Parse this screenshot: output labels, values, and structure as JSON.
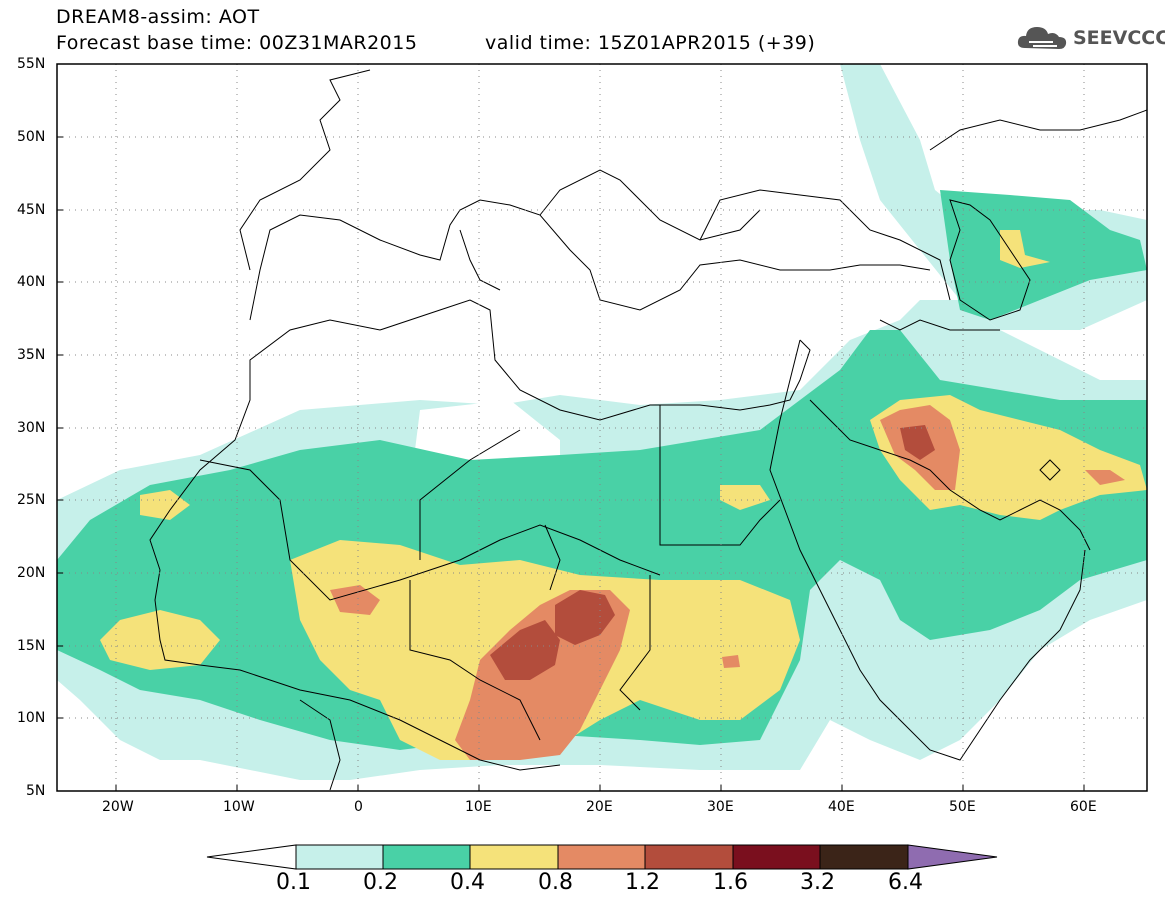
{
  "header": {
    "line1": "DREAM8-assim: AOT",
    "base_time": "Forecast base time: 00Z31MAR2015",
    "valid_time": "valid time: 15Z01APR2015 (+39)"
  },
  "logo": {
    "text": "SEEVCCC",
    "icon": "cloud-icon"
  },
  "map": {
    "lon_range": [
      -25,
      65
    ],
    "lat_range": [
      5,
      55
    ],
    "lat_ticks": [
      "55N",
      "50N",
      "45N",
      "40N",
      "35N",
      "30N",
      "25N",
      "20N",
      "15N",
      "10N",
      "5N"
    ],
    "lon_ticks": [
      "20W",
      "10W",
      "0",
      "10E",
      "20E",
      "30E",
      "40E",
      "50E",
      "60E"
    ],
    "grid": "dotted"
  },
  "colorbar": {
    "labels": [
      "0.1",
      "0.2",
      "0.4",
      "0.8",
      "1.2",
      "1.6",
      "3.2",
      "6.4"
    ],
    "colors": [
      "#c6f0ea",
      "#49d1a6",
      "#f5e27a",
      "#e48a64",
      "#b34d3c",
      "#7a0f1e",
      "#3b2418",
      "#8f6cb0"
    ],
    "under_color": "#ffffff"
  }
}
